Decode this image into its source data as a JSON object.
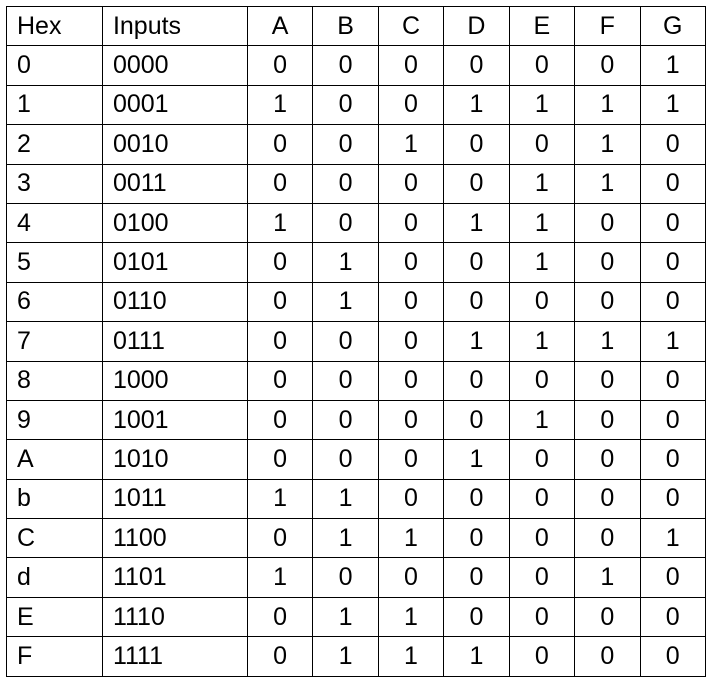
{
  "table": {
    "headers": [
      "Hex",
      "Inputs",
      "A",
      "B",
      "C",
      "D",
      "E",
      "F",
      "G"
    ],
    "rows": [
      [
        "0",
        "0000",
        "0",
        "0",
        "0",
        "0",
        "0",
        "0",
        "1"
      ],
      [
        "1",
        "0001",
        "1",
        "0",
        "0",
        "1",
        "1",
        "1",
        "1"
      ],
      [
        "2",
        "0010",
        "0",
        "0",
        "1",
        "0",
        "0",
        "1",
        "0"
      ],
      [
        "3",
        "0011",
        "0",
        "0",
        "0",
        "0",
        "1",
        "1",
        "0"
      ],
      [
        "4",
        "0100",
        "1",
        "0",
        "0",
        "1",
        "1",
        "0",
        "0"
      ],
      [
        "5",
        "0101",
        "0",
        "1",
        "0",
        "0",
        "1",
        "0",
        "0"
      ],
      [
        "6",
        "0110",
        "0",
        "1",
        "0",
        "0",
        "0",
        "0",
        "0"
      ],
      [
        "7",
        "0111",
        "0",
        "0",
        "0",
        "1",
        "1",
        "1",
        "1"
      ],
      [
        "8",
        "1000",
        "0",
        "0",
        "0",
        "0",
        "0",
        "0",
        "0"
      ],
      [
        "9",
        "1001",
        "0",
        "0",
        "0",
        "0",
        "1",
        "0",
        "0"
      ],
      [
        "A",
        "1010",
        "0",
        "0",
        "0",
        "1",
        "0",
        "0",
        "0"
      ],
      [
        "b",
        "1011",
        "1",
        "1",
        "0",
        "0",
        "0",
        "0",
        "0"
      ],
      [
        "C",
        "1100",
        "0",
        "1",
        "1",
        "0",
        "0",
        "0",
        "1"
      ],
      [
        "d",
        "1101",
        "1",
        "0",
        "0",
        "0",
        "0",
        "1",
        "0"
      ],
      [
        "E",
        "1110",
        "0",
        "1",
        "1",
        "0",
        "0",
        "0",
        "0"
      ],
      [
        "F",
        "1111",
        "0",
        "1",
        "1",
        "1",
        "0",
        "0",
        "0"
      ]
    ]
  }
}
